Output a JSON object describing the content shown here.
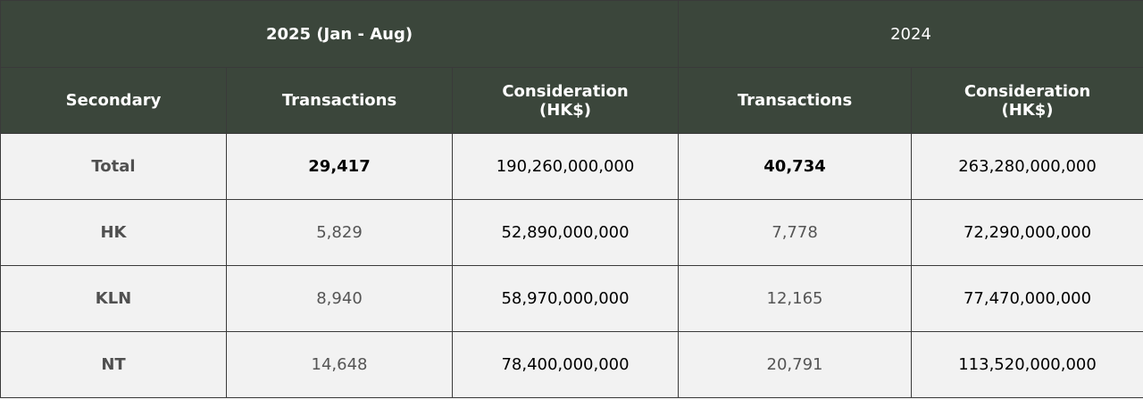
{
  "header": {
    "groups": [
      "2025 (Jan - Aug)",
      "2024"
    ]
  },
  "table": {
    "columns": [
      "Secondary",
      "Transactions",
      "Consideration (HK$)",
      "Transactions",
      "Consideration (HK$)"
    ],
    "rows": [
      [
        "Total",
        "29,417",
        "190,260,000,000",
        "40,734",
        "263,280,000,000"
      ],
      [
        "HK",
        "5,829",
        "52,890,000,000",
        "7,778",
        "72,290,000,000"
      ],
      [
        "KLN",
        "8,940",
        "58,970,000,000",
        "12,165",
        "77,470,000,000"
      ],
      [
        "NT",
        "14,648",
        "78,400,000,000",
        "20,791",
        "113,520,000,000"
      ]
    ]
  }
}
